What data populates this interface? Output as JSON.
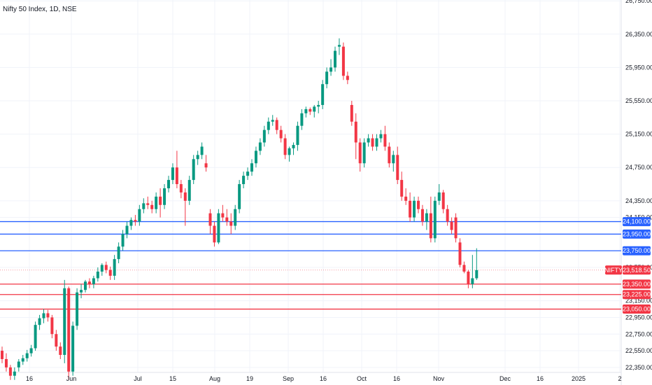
{
  "chart_data": {
    "type": "candlestick",
    "title": "Nifty 50 Index, 1D, NSE",
    "x_ticks": [
      "16",
      "Jun",
      "Jul",
      "15",
      "Aug",
      "19",
      "Sep",
      "16",
      "Oct",
      "16",
      "Nov",
      "Dec",
      "16",
      "2025",
      "2"
    ],
    "y_ticks": [
      {
        "value": 22350,
        "label": "22,350.00"
      },
      {
        "value": 22550,
        "label": "22,550.00"
      },
      {
        "value": 22750,
        "label": "22,750.00"
      },
      {
        "value": 22950,
        "label": "22,950.00"
      },
      {
        "value": 23150,
        "label": "23,150.00"
      },
      {
        "value": 23550,
        "label": "23,550.00"
      },
      {
        "value": 24150,
        "label": "24,150.00"
      },
      {
        "value": 24350,
        "label": "24,350.00"
      },
      {
        "value": 24750,
        "label": "24,750.00"
      },
      {
        "value": 25150,
        "label": "25,150.00"
      },
      {
        "value": 25550,
        "label": "25,550.00"
      },
      {
        "value": 25950,
        "label": "25,950.00"
      },
      {
        "value": 26350,
        "label": "26,350.00"
      },
      {
        "value": 26750,
        "label": "26,750.00"
      }
    ],
    "ylim": [
      22290,
      26760
    ],
    "levels": [
      {
        "value": 24100,
        "label": "24,100.00",
        "color": "#2962ff"
      },
      {
        "value": 23950,
        "label": "23,950.00",
        "color": "#2962ff"
      },
      {
        "value": 23750,
        "label": "23,750.00",
        "color": "#2962ff"
      },
      {
        "value": 23350,
        "label": "23,350.00",
        "color": "#f23645"
      },
      {
        "value": 23225,
        "label": "23,225.00",
        "color": "#f23645"
      },
      {
        "value": 23050,
        "label": "23,050.00",
        "color": "#f23645"
      }
    ],
    "last_price": {
      "symbol": "NIFTY",
      "value": 23518.5,
      "label": "23,518.50",
      "color": "#f23645"
    },
    "colors": {
      "up": "#089981",
      "down": "#f23645"
    },
    "candles": [
      [
        22550,
        22600,
        22400,
        22450
      ],
      [
        22450,
        22520,
        22300,
        22350
      ],
      [
        22350,
        22380,
        22200,
        22250
      ],
      [
        22250,
        22350,
        22200,
        22300
      ],
      [
        22350,
        22450,
        22300,
        22420
      ],
      [
        22420,
        22500,
        22380,
        22460
      ],
      [
        22460,
        22560,
        22420,
        22520
      ],
      [
        22520,
        22620,
        22480,
        22580
      ],
      [
        22580,
        22900,
        22550,
        22860
      ],
      [
        22860,
        22980,
        22800,
        22940
      ],
      [
        22940,
        23050,
        22880,
        23000
      ],
      [
        23000,
        23040,
        22900,
        22950
      ],
      [
        22950,
        22980,
        22700,
        22750
      ],
      [
        22750,
        22800,
        22550,
        22600
      ],
      [
        22600,
        22650,
        22450,
        22500
      ],
      [
        22500,
        23400,
        22400,
        23300
      ],
      [
        23300,
        23320,
        22200,
        22300
      ],
      [
        22300,
        22900,
        22250,
        22850
      ],
      [
        22850,
        23300,
        22800,
        23250
      ],
      [
        23250,
        23350,
        23180,
        23280
      ],
      [
        23280,
        23400,
        23250,
        23380
      ],
      [
        23380,
        23420,
        23300,
        23350
      ],
      [
        23350,
        23450,
        23300,
        23420
      ],
      [
        23420,
        23550,
        23380,
        23500
      ],
      [
        23500,
        23600,
        23450,
        23580
      ],
      [
        23580,
        23620,
        23480,
        23520
      ],
      [
        23520,
        23560,
        23400,
        23450
      ],
      [
        23450,
        23700,
        23400,
        23650
      ],
      [
        23650,
        23850,
        23600,
        23800
      ],
      [
        23800,
        24000,
        23750,
        23950
      ],
      [
        23950,
        24100,
        23900,
        24050
      ],
      [
        24050,
        24150,
        24000,
        24120
      ],
      [
        24120,
        24180,
        24050,
        24100
      ],
      [
        24100,
        24300,
        24050,
        24250
      ],
      [
        24250,
        24380,
        24200,
        24320
      ],
      [
        24320,
        24400,
        24250,
        24300
      ],
      [
        24300,
        24350,
        24200,
        24250
      ],
      [
        24250,
        24450,
        24200,
        24400
      ],
      [
        24400,
        24500,
        24150,
        24300
      ],
      [
        24300,
        24550,
        24250,
        24500
      ],
      [
        24500,
        24650,
        24450,
        24600
      ],
      [
        24600,
        24800,
        24550,
        24750
      ],
      [
        24750,
        24950,
        24500,
        24550
      ],
      [
        24550,
        24600,
        24380,
        24450
      ],
      [
        24450,
        24500,
        24050,
        24350
      ],
      [
        24350,
        24650,
        24300,
        24600
      ],
      [
        24600,
        24900,
        24550,
        24850
      ],
      [
        24850,
        24950,
        24780,
        24900
      ],
      [
        24900,
        25050,
        24850,
        25000
      ],
      [
        24800,
        24900,
        24700,
        24750
      ],
      [
        24200,
        24250,
        23950,
        24050
      ],
      [
        24050,
        24100,
        23800,
        23850
      ],
      [
        23850,
        24250,
        23830,
        24200
      ],
      [
        24200,
        24300,
        24100,
        24150
      ],
      [
        24150,
        24250,
        24050,
        24100
      ],
      [
        24100,
        24200,
        23950,
        24050
      ],
      [
        24050,
        24300,
        24000,
        24250
      ],
      [
        24250,
        24600,
        24200,
        24550
      ],
      [
        24550,
        24700,
        24500,
        24650
      ],
      [
        24650,
        24750,
        24600,
        24700
      ],
      [
        24700,
        24850,
        24650,
        24800
      ],
      [
        24800,
        25000,
        24750,
        24950
      ],
      [
        24950,
        25100,
        24900,
        25050
      ],
      [
        25050,
        25250,
        25000,
        25200
      ],
      [
        25200,
        25350,
        25150,
        25300
      ],
      [
        25300,
        25380,
        25250,
        25320
      ],
      [
        25320,
        25350,
        25150,
        25200
      ],
      [
        25200,
        25250,
        25050,
        25100
      ],
      [
        25100,
        25150,
        24850,
        24900
      ],
      [
        24900,
        25000,
        24820,
        24980
      ],
      [
        24980,
        25050,
        24900,
        25020
      ],
      [
        25020,
        25300,
        24950,
        25250
      ],
      [
        25250,
        25450,
        25200,
        25400
      ],
      [
        25400,
        25480,
        25350,
        25450
      ],
      [
        25450,
        25470,
        25380,
        25420
      ],
      [
        25420,
        25500,
        25350,
        25480
      ],
      [
        25480,
        25550,
        25400,
        25500
      ],
      [
        25500,
        25800,
        25450,
        25750
      ],
      [
        25750,
        25950,
        25700,
        25900
      ],
      [
        25900,
        26050,
        25850,
        25950
      ],
      [
        25950,
        26200,
        25900,
        26150
      ],
      [
        26200,
        26300,
        26100,
        26220
      ],
      [
        26200,
        26250,
        25800,
        25850
      ],
      [
        25850,
        25900,
        25750,
        25800
      ],
      [
        25500,
        25550,
        25250,
        25300
      ],
      [
        25300,
        25400,
        24850,
        25050
      ],
      [
        25050,
        25100,
        24700,
        24800
      ],
      [
        24800,
        25100,
        24750,
        25050
      ],
      [
        25050,
        25150,
        25000,
        25100
      ],
      [
        25100,
        25150,
        24950,
        25000
      ],
      [
        25000,
        25150,
        24950,
        25100
      ],
      [
        25100,
        25200,
        25050,
        25150
      ],
      [
        25150,
        25250,
        24950,
        25000
      ],
      [
        25000,
        25050,
        24750,
        24800
      ],
      [
        24800,
        24950,
        24700,
        24900
      ],
      [
        24900,
        25000,
        24550,
        24600
      ],
      [
        24600,
        24700,
        24350,
        24400
      ],
      [
        24400,
        24500,
        24300,
        24350
      ],
      [
        24350,
        24450,
        24100,
        24150
      ],
      [
        24150,
        24400,
        24100,
        24350
      ],
      [
        24350,
        24400,
        24200,
        24250
      ],
      [
        24250,
        24300,
        24050,
        24100
      ],
      [
        24100,
        24250,
        24000,
        24200
      ],
      [
        24200,
        24400,
        23850,
        23900
      ],
      [
        23900,
        24400,
        23850,
        24350
      ],
      [
        24350,
        24550,
        24300,
        24450
      ],
      [
        24450,
        24480,
        24200,
        24250
      ],
      [
        24250,
        24300,
        24050,
        24100
      ],
      [
        24100,
        24150,
        23950,
        24000
      ],
      [
        24150,
        24200,
        23850,
        23900
      ],
      [
        23850,
        23900,
        23550,
        23580
      ],
      [
        23580,
        23620,
        23480,
        23500
      ],
      [
        23500,
        23520,
        23300,
        23350
      ],
      [
        23350,
        23700,
        23300,
        23420
      ],
      [
        23420,
        23780,
        23400,
        23518
      ]
    ]
  }
}
